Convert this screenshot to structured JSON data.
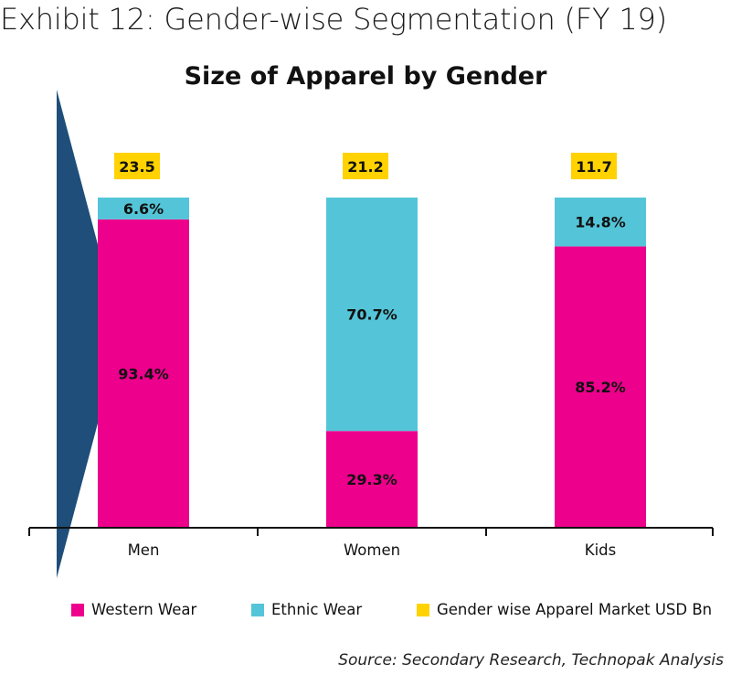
{
  "exhibit_title": "Exhibit 12: Gender-wise Segmentation (FY 19)",
  "source": "Source: Secondary Research, Technopak Analysis",
  "colors": {
    "western": "#ec008c",
    "ethnic": "#54c5d8",
    "market": "#ffd200",
    "arrow": "#1e4e79"
  },
  "chart_data": {
    "type": "bar",
    "stacked": "percent",
    "title": "Size of Apparel by Gender",
    "categories": [
      "Men",
      "Women",
      "Kids"
    ],
    "series": [
      {
        "name": "Western Wear",
        "values": [
          93.4,
          29.3,
          85.2
        ],
        "labels": [
          "93.4%",
          "29.3%",
          "85.2%"
        ]
      },
      {
        "name": "Ethnic Wear",
        "values": [
          6.6,
          70.7,
          14.8
        ],
        "labels": [
          "6.6%",
          "70.7%",
          "14.8%"
        ]
      }
    ],
    "market_size": {
      "name": "Gender wise Apparel Market USD Bn",
      "values": [
        23.5,
        21.2,
        11.7
      ],
      "labels": [
        "23.5",
        "21.2",
        "11.7"
      ]
    },
    "ylim": [
      0,
      100
    ],
    "grid": false,
    "legend_position": "bottom"
  }
}
